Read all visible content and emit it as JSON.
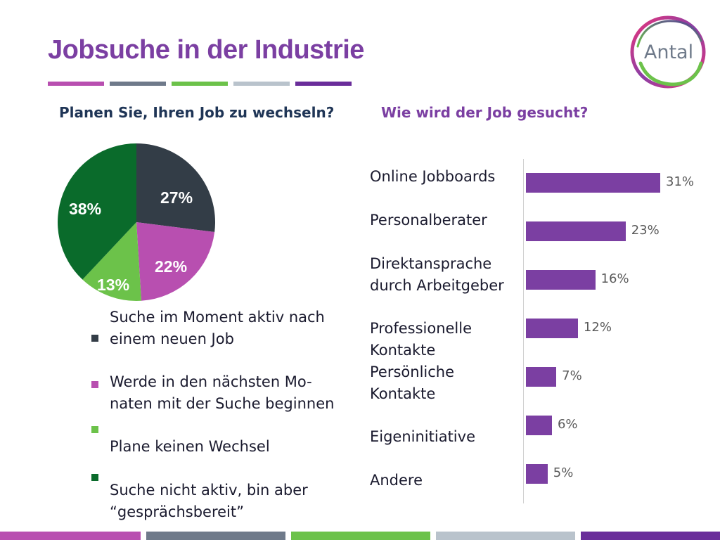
{
  "title": "Jobsuche in der Industrie",
  "colors": {
    "accent": "#7b3fa2",
    "bar_magenta": "#b84fb0",
    "bar_slate": "#6f7a8a",
    "bar_green": "#6cc24a",
    "bar_grey": "#b9c3cc",
    "bar_purple": "#6a2d9a"
  },
  "logo": {
    "text": "Antal",
    "icon": "antal-swirl-logo"
  },
  "left_heading": "Planen Sie, Ihren Job zu wechseln?",
  "right_heading": "Wie wird der Job gesucht?",
  "legend": [
    {
      "text": "Suche im Moment aktiv nach einem neuen Job",
      "color": "#333d47"
    },
    {
      "text": "Werde in den nächsten Mo-naten mit der Suche beginnen",
      "color": "#b84fb0"
    },
    {
      "text": "Plane keinen Wechsel",
      "color": "#6cc24a"
    },
    {
      "text": "Suche nicht aktiv, bin aber “gesprächsbereit”",
      "color": "#0a6b2b"
    }
  ],
  "chart_data": [
    {
      "type": "pie",
      "title": "Planen Sie, Ihren Job zu wechseln?",
      "slices": [
        {
          "label": "Suche im Moment aktiv nach einem neuen Job",
          "value": 27,
          "display": "27%",
          "color": "#333d47"
        },
        {
          "label": "Werde in den nächsten Mo-naten mit der Suche beginnen",
          "value": 22,
          "display": "22%",
          "color": "#b84fb0"
        },
        {
          "label": "Plane keinen Wechsel",
          "value": 13,
          "display": "13%",
          "color": "#6cc24a"
        },
        {
          "label": "Suche nicht aktiv, bin aber “gesprächsbereit”",
          "value": 38,
          "display": "38%",
          "color": "#0a6b2b"
        }
      ],
      "legend_position": "below"
    },
    {
      "type": "bar",
      "orientation": "horizontal",
      "title": "Wie wird der Job gesucht?",
      "categories": [
        [
          "Online Jobboards"
        ],
        [
          "Personalberater"
        ],
        [
          "Direktansprache",
          "durch Arbeitgeber"
        ],
        [
          "Professionelle",
          "Kontakte"
        ],
        [
          "Persönliche",
          "Kontakte"
        ],
        [
          "Eigeninitiative"
        ],
        [
          "Andere"
        ]
      ],
      "values": [
        31,
        23,
        16,
        12,
        7,
        6,
        5
      ],
      "value_labels": [
        "31%",
        "23%",
        "16%",
        "12%",
        "7%",
        "6%",
        "5%"
      ],
      "xlim": [
        0,
        35
      ],
      "grid": false,
      "color": "#7b3fa2"
    }
  ]
}
